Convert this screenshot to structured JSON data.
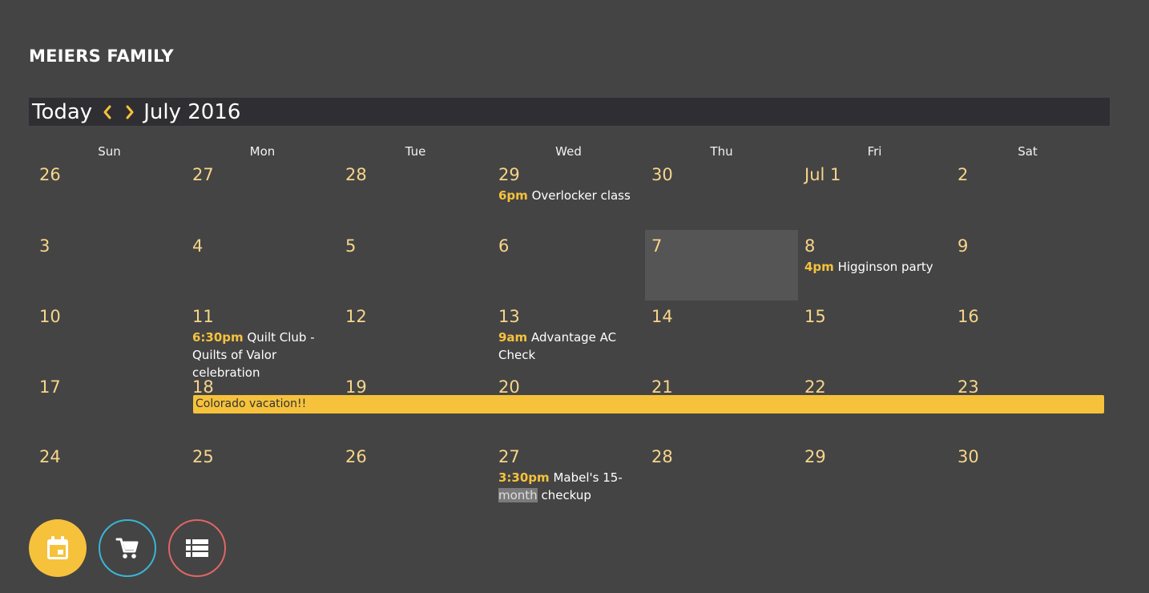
{
  "header": {
    "title": "MEIERS FAMILY"
  },
  "toolbar": {
    "today_label": "Today",
    "month_label": "July 2016"
  },
  "weekdays": [
    "Sun",
    "Mon",
    "Tue",
    "Wed",
    "Thu",
    "Fri",
    "Sat"
  ],
  "weeks": [
    {
      "days": [
        {
          "label": "26"
        },
        {
          "label": "27"
        },
        {
          "label": "28"
        },
        {
          "label": "29",
          "events": [
            {
              "time": "6pm",
              "title": "Overlocker class"
            }
          ]
        },
        {
          "label": "30"
        },
        {
          "label": "Jul 1"
        },
        {
          "label": "2"
        }
      ]
    },
    {
      "days": [
        {
          "label": "3"
        },
        {
          "label": "4"
        },
        {
          "label": "5"
        },
        {
          "label": "6"
        },
        {
          "label": "7",
          "today": true
        },
        {
          "label": "8",
          "events": [
            {
              "time": "4pm",
              "title": "Higginson party"
            }
          ]
        },
        {
          "label": "9"
        }
      ]
    },
    {
      "days": [
        {
          "label": "10"
        },
        {
          "label": "11",
          "events": [
            {
              "time": "6:30pm",
              "title": "Quilt Club - Quilts of Valor celebration"
            }
          ]
        },
        {
          "label": "12"
        },
        {
          "label": "13",
          "events": [
            {
              "time": "9am",
              "title": "Advantage AC Check"
            }
          ]
        },
        {
          "label": "14"
        },
        {
          "label": "15"
        },
        {
          "label": "16"
        }
      ]
    },
    {
      "days": [
        {
          "label": "17"
        },
        {
          "label": "18"
        },
        {
          "label": "19"
        },
        {
          "label": "20"
        },
        {
          "label": "21"
        },
        {
          "label": "22"
        },
        {
          "label": "23"
        }
      ],
      "banner": {
        "title": "Colorado vacation!!",
        "start_day": "Mon",
        "end_day": "Sat"
      }
    },
    {
      "days": [
        {
          "label": "24"
        },
        {
          "label": "25"
        },
        {
          "label": "26"
        },
        {
          "label": "27",
          "events": [
            {
              "time": "3:30pm",
              "title_before": "Mabel's 15-",
              "title_highlight": "month",
              "title_after": " checkup"
            }
          ]
        },
        {
          "label": "28"
        },
        {
          "label": "29"
        },
        {
          "label": "30"
        }
      ]
    }
  ],
  "fabs": [
    {
      "name": "calendar-button",
      "icon": "calendar-icon",
      "color": "#f6c23c"
    },
    {
      "name": "cart-button",
      "icon": "cart-icon",
      "color": "#3ab5d6"
    },
    {
      "name": "list-button",
      "icon": "list-icon",
      "color": "#e06666"
    }
  ],
  "colors": {
    "background": "#444444",
    "toolbar": "#2f2f33",
    "accent": "#f6c23c",
    "day_number": "#f7d58a",
    "today_cell": "#555555"
  }
}
